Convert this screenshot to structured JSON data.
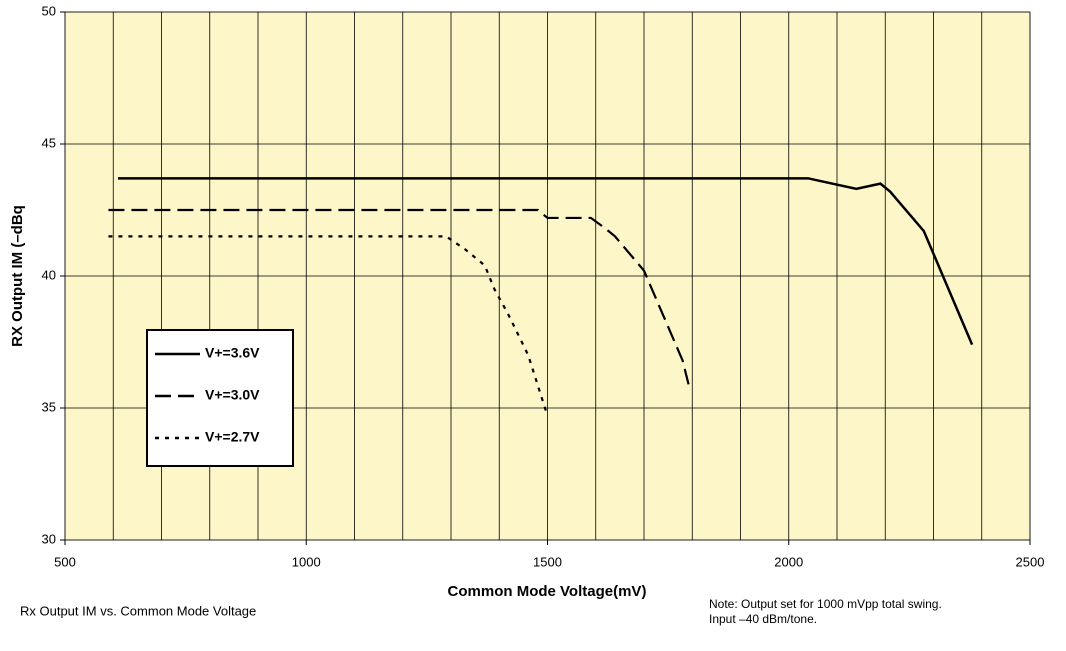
{
  "chart_data": {
    "type": "line",
    "xlabel": "Common Mode Voltage(mV)",
    "ylabel": "RX Output IM (–dBq",
    "caption": "Rx Output IM vs. Common Mode Voltage",
    "notes": [
      "Note: Output set for 1000 mVpp total swing.",
      "Input –40 dBm/tone."
    ],
    "xlim": [
      500,
      2500
    ],
    "ylim": [
      30,
      50
    ],
    "xticks": [
      500,
      1000,
      1500,
      2000,
      2500
    ],
    "yticks": [
      30,
      35,
      40,
      45,
      50
    ],
    "xgrid": [
      500,
      600,
      700,
      800,
      900,
      1000,
      1100,
      1200,
      1300,
      1400,
      1500,
      1600,
      1700,
      1800,
      1900,
      2000,
      2100,
      2200,
      2300,
      2400,
      2500
    ],
    "grid": true,
    "legend": "lower-left",
    "series": [
      {
        "name": "V+=3.6V",
        "color": "#000000",
        "style": "solid",
        "x": [
          610,
          2040,
          2140,
          2190,
          2210,
          2280,
          2380
        ],
        "values": [
          43.7,
          43.7,
          43.3,
          43.5,
          43.2,
          41.7,
          37.4
        ]
      },
      {
        "name": "V+=3.0V",
        "color": "#000000",
        "style": "dashed",
        "x": [
          590,
          1480,
          1500,
          1590,
          1620,
          1640,
          1700,
          1740,
          1780,
          1795
        ],
        "values": [
          42.5,
          42.5,
          42.2,
          42.2,
          41.8,
          41.5,
          40.2,
          38.5,
          36.8,
          35.7
        ]
      },
      {
        "name": "V+=2.7V",
        "color": "#000000",
        "style": "dotted",
        "x": [
          590,
          1290,
          1330,
          1370,
          1390,
          1420,
          1460,
          1500
        ],
        "values": [
          41.5,
          41.5,
          41.0,
          40.4,
          39.5,
          38.5,
          37.0,
          34.7
        ]
      }
    ]
  }
}
